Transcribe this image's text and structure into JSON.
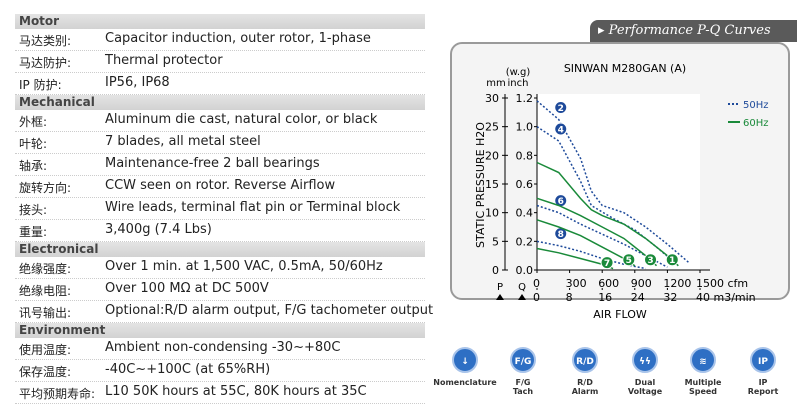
{
  "specs": [
    {
      "title": "Motor",
      "rows": [
        [
          "马达类别:",
          "Capacitor induction, outer rotor, 1-phase"
        ],
        [
          "马达防护:",
          "Thermal protector"
        ],
        [
          "IP 防护:",
          "IP56, IP68"
        ]
      ]
    },
    {
      "title": "Mechanical",
      "rows": [
        [
          "外框:",
          "Aluminum die cast, natural color, or black"
        ],
        [
          "叶轮:",
          "7 blades, all metal steel"
        ],
        [
          "轴承:",
          "Maintenance-free 2 ball bearings"
        ],
        [
          "旋转方向:",
          "CCW seen on rotor. Reverse Airflow"
        ],
        [
          "接头:",
          "Wire leads, terminal flat pin or Terminal block"
        ],
        [
          "重量:",
          "3,400g (7.4 Lbs)"
        ]
      ]
    },
    {
      "title": "Electronical",
      "rows": [
        [
          "绝缘强度:",
          "Over 1 min. at 1,500 VAC, 0.5mA, 50/60Hz"
        ],
        [
          "绝缘电阻:",
          "Over 100 MΩ at DC 500V"
        ],
        [
          "讯号输出:",
          "Optional:R/D alarm output, F/G tachometer output"
        ]
      ]
    },
    {
      "title": "Environment",
      "rows": [
        [
          "使用温度:",
          "Ambient non-condensing -30~+80C"
        ],
        [
          "保存温度:",
          "-40C~+100C (at 65%RH)"
        ],
        [
          "平均预期寿命:",
          "L10 50K hours at 55C, 80K hours at 35C"
        ]
      ]
    }
  ],
  "panel_title": "Performance P-Q Curves",
  "pq": {
    "title": "SINWAN M280GAN (A)",
    "unit_top": "(w.g)",
    "unit_mm": "mm",
    "unit_inch": "inch",
    "y_label": "STATIC PRESSURE H2O",
    "x_label": "AIR FLOW",
    "p_label": "P",
    "q_label": "Q",
    "inch_lim": [
      0,
      1.2
    ],
    "inch_ticks": [
      {
        "value": 0,
        "label": "0.0"
      },
      0.2,
      0.4,
      0.6,
      0.8,
      {
        "value": 1,
        "label": "1.0"
      },
      1.2
    ],
    "mm_lim": [
      0,
      30
    ],
    "mm_ticks": [
      0,
      5,
      10,
      15,
      20,
      25,
      30
    ],
    "cfm_lim": [
      0,
      1500
    ],
    "cfm_ticks": [
      0,
      300,
      600,
      900,
      1200,
      {
        "value": 1500,
        "label": "1500 cfm"
      }
    ],
    "m3_lim": [
      0,
      40
    ],
    "m3_ticks": [
      0,
      8,
      16,
      24,
      32,
      {
        "value": 40,
        "label": "40 m3/min"
      }
    ],
    "groups": [
      {
        "name": "50Hz",
        "color": "#1e4a9a",
        "dashed": true,
        "curves": [
          {
            "label": "2",
            "x": [
              0,
              200,
              400,
              500,
              600,
              800,
              1000,
              1200,
              1400
            ],
            "y": [
              1.18,
              1.05,
              0.78,
              0.55,
              0.45,
              0.4,
              0.3,
              0.18,
              0.05
            ]
          },
          {
            "label": "4",
            "x": [
              0,
              200,
              400,
              500,
              700,
              900,
              1100,
              1300
            ],
            "y": [
              1.0,
              0.9,
              0.62,
              0.45,
              0.36,
              0.28,
              0.16,
              0.03
            ]
          },
          {
            "label": "6",
            "x": [
              0,
              200,
              400,
              600,
              800,
              1000,
              1200
            ],
            "y": [
              0.45,
              0.4,
              0.32,
              0.25,
              0.18,
              0.1,
              0.02
            ]
          },
          {
            "label": "8",
            "x": [
              0,
              200,
              400,
              600,
              800,
              1000
            ],
            "y": [
              0.2,
              0.17,
              0.13,
              0.08,
              0.04,
              0.01
            ]
          }
        ]
      },
      {
        "name": "60Hz",
        "color": "#1a8a3a",
        "dashed": false,
        "curves": [
          {
            "label": "1",
            "x": [
              0,
              200,
              400,
              500,
              600,
              800,
              1000,
              1200,
              1300
            ],
            "y": [
              0.75,
              0.68,
              0.5,
              0.42,
              0.38,
              0.32,
              0.22,
              0.1,
              0.03
            ]
          },
          {
            "label": "3",
            "x": [
              0,
              200,
              400,
              600,
              800,
              1000,
              1100
            ],
            "y": [
              0.5,
              0.45,
              0.38,
              0.3,
              0.22,
              0.1,
              0.03
            ]
          },
          {
            "label": "5",
            "x": [
              0,
              200,
              400,
              600,
              800,
              900
            ],
            "y": [
              0.35,
              0.3,
              0.24,
              0.16,
              0.08,
              0.03
            ]
          },
          {
            "label": "7",
            "x": [
              0,
              200,
              400,
              600,
              700
            ],
            "y": [
              0.15,
              0.12,
              0.08,
              0.04,
              0.01
            ]
          }
        ]
      }
    ]
  },
  "icons": [
    {
      "badge": "↓",
      "caption": [
        "Nomenclature"
      ]
    },
    {
      "badge": "F/G",
      "caption": [
        "F/G",
        "Tach"
      ]
    },
    {
      "badge": "R/D",
      "caption": [
        "R/D",
        "Alarm"
      ]
    },
    {
      "badge": "ϟϟ",
      "caption": [
        "Dual",
        "Voltage"
      ]
    },
    {
      "badge": "≋",
      "caption": [
        "Multiple",
        "Speed"
      ]
    },
    {
      "badge": "IP",
      "caption": [
        "IP",
        "Report"
      ]
    }
  ]
}
